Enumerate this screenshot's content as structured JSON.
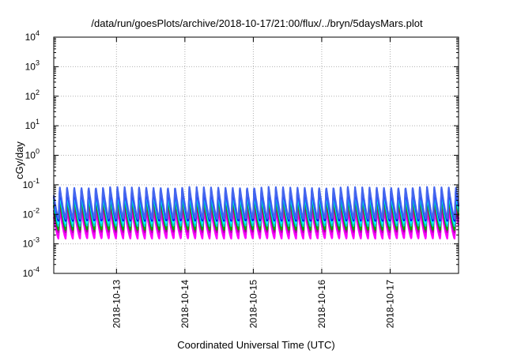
{
  "chart_data": {
    "type": "line",
    "title": "/data/run/goesPlots/archive/2018-10-17/21:00/flux/../bryn/5daysMars.plot",
    "xlabel": "Coordinated Universal Time (UTC)",
    "ylabel": "cGy/day",
    "yscale": "log",
    "ylim": [
      0.0001,
      10000
    ],
    "ytick_labels": [
      {
        "base": "10",
        "exp": "-4"
      },
      {
        "base": "10",
        "exp": "-3"
      },
      {
        "base": "10",
        "exp": "-2"
      },
      {
        "base": "10",
        "exp": "-1"
      },
      {
        "base": "10",
        "exp": "0"
      },
      {
        "base": "10",
        "exp": "1"
      },
      {
        "base": "10",
        "exp": "2"
      },
      {
        "base": "10",
        "exp": "3"
      },
      {
        "base": "10",
        "exp": "4"
      }
    ],
    "xlim": [
      "2018-10-12T02:00",
      "2018-10-18T00:00"
    ],
    "x_ticks": [
      "2018-10-13",
      "2018-10-14",
      "2018-10-15",
      "2018-10-16",
      "2018-10-17"
    ],
    "grid": true,
    "series_colors": [
      "#ff00ff",
      "#ee00ee",
      "#aa00aa",
      "#ff0000",
      "#00aa00",
      "#00cccc",
      "#00ffff",
      "#0000ff",
      "#4466ee"
    ],
    "series_ranges": [
      {
        "min": 0.0015,
        "max": 0.015
      },
      {
        "min": 0.002,
        "max": 0.02
      },
      {
        "min": 0.0025,
        "max": 0.025
      },
      {
        "min": 0.003,
        "max": 0.035
      },
      {
        "min": 0.003,
        "max": 0.04
      },
      {
        "min": 0.004,
        "max": 0.05
      },
      {
        "min": 0.005,
        "max": 0.06
      },
      {
        "min": 0.006,
        "max": 0.075
      },
      {
        "min": 0.007,
        "max": 0.085
      }
    ],
    "cycles_per_day": 9.5
  }
}
